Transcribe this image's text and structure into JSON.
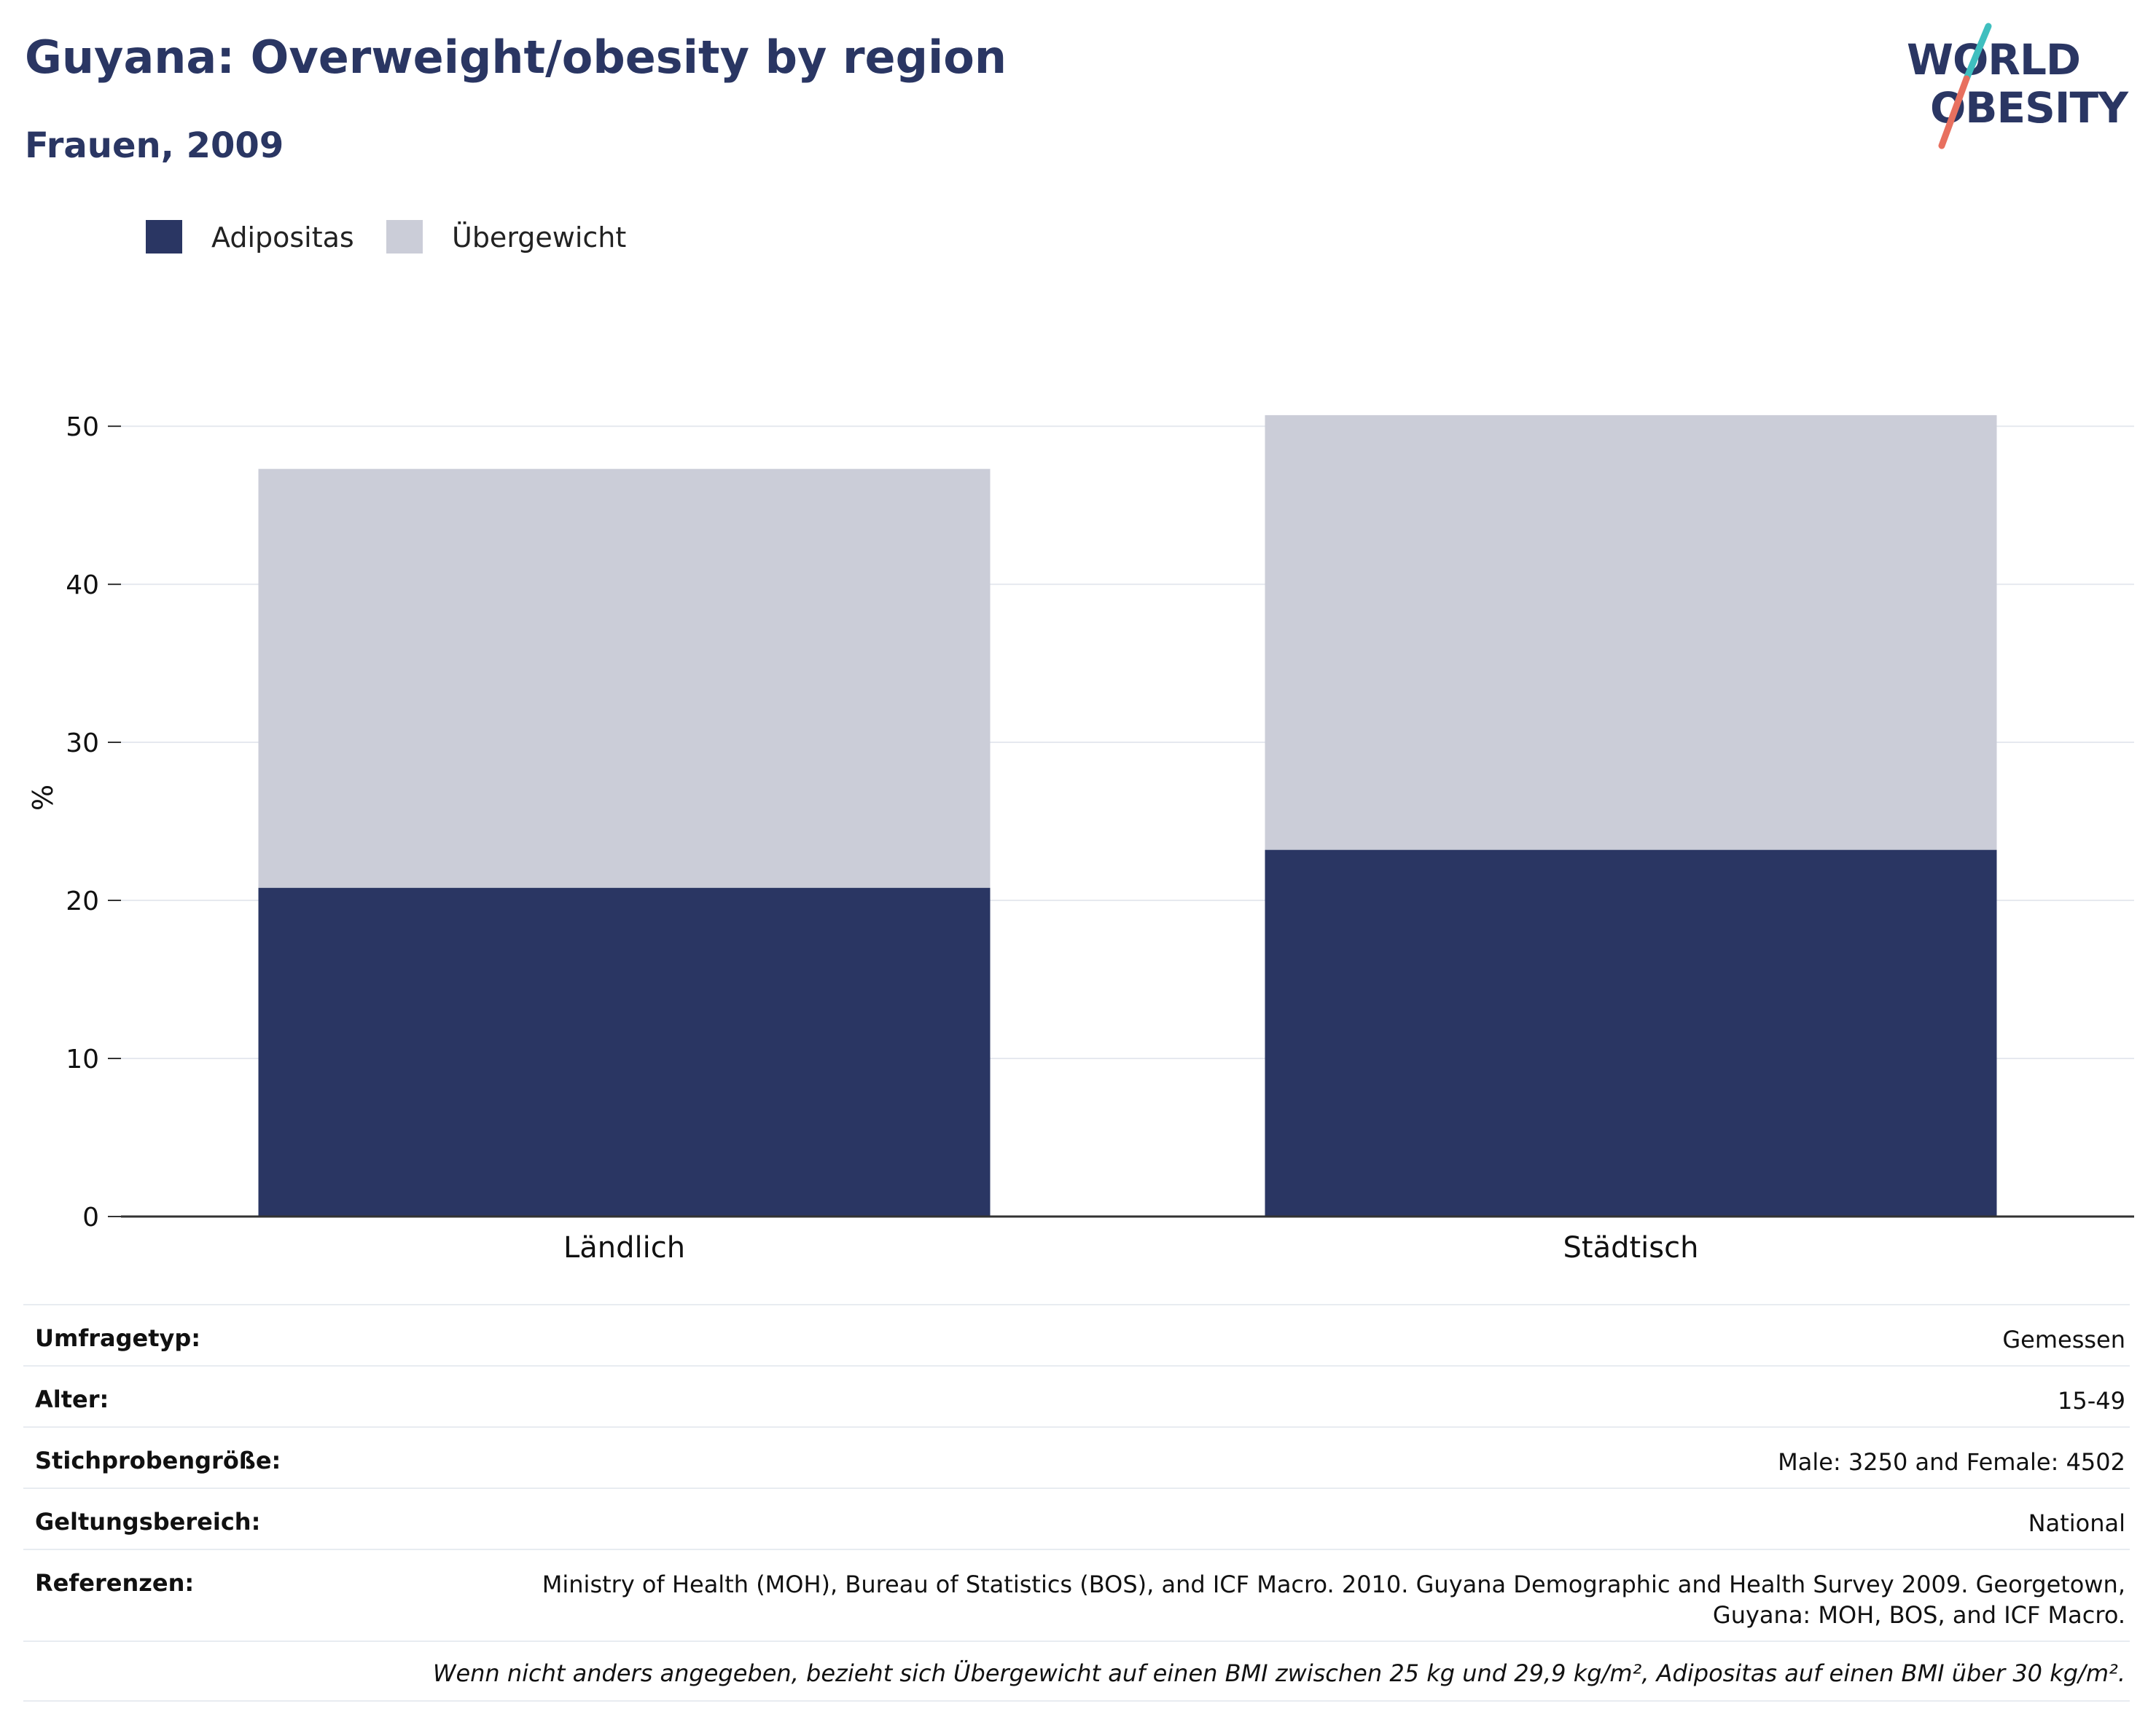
{
  "header": {
    "title": "Guyana: Overweight/obesity by region",
    "subtitle": "Frauen, 2009"
  },
  "logo": {
    "line1": "WORLD",
    "line2": "OBESITY",
    "colors": {
      "text": "#2a3663",
      "slash_top": "#3fbfbf",
      "slash_bottom": "#e8705f"
    }
  },
  "legend": [
    {
      "label": "Adipositas",
      "color": "#2a3663"
    },
    {
      "label": "Übergewicht",
      "color": "#cbcdd8"
    }
  ],
  "chart_data": {
    "type": "bar",
    "stacked": true,
    "categories": [
      "Ländlich",
      "Städtisch"
    ],
    "series": [
      {
        "name": "Adipositas",
        "values": [
          20.8,
          23.2
        ],
        "color": "#2a3663"
      },
      {
        "name": "Übergewicht",
        "values": [
          26.5,
          27.5
        ],
        "color": "#cbcdd8"
      }
    ],
    "ylabel": "%",
    "xlabel": "",
    "ylim": [
      0,
      53
    ],
    "yticks": [
      0,
      10,
      20,
      30,
      40,
      50
    ],
    "grid": true,
    "legend_position": "top-left"
  },
  "info": {
    "rows": [
      {
        "label": "Umfragetyp:",
        "value": "Gemessen"
      },
      {
        "label": "Alter:",
        "value": "15-49"
      },
      {
        "label": "Stichprobengröße:",
        "value": "Male: 3250 and Female: 4502"
      },
      {
        "label": "Geltungsbereich:",
        "value": "National"
      }
    ],
    "reference": {
      "label": "Referenzen:",
      "line1": "Ministry of Health (MOH), Bureau of Statistics (BOS), and ICF Macro. 2010. Guyana Demographic and Health Survey 2009. Georgetown,",
      "line2": "Guyana: MOH, BOS, and ICF Macro."
    },
    "note": "Wenn nicht anders angegeben, bezieht sich Übergewicht auf einen BMI zwischen 25 kg und 29,9 kg/m², Adipositas auf einen BMI über 30 kg/m²."
  }
}
